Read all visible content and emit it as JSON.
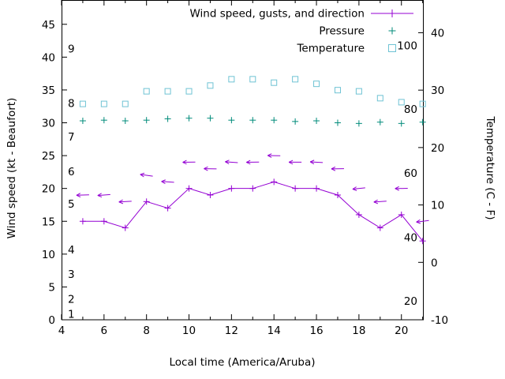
{
  "chart_data": {
    "type": "line",
    "title": "",
    "xlabel": "Local time (America/Aruba)",
    "ylabel_left": "Wind speed (kt - Beaufort)",
    "ylabel_right": "Temperature (C - F)",
    "x_range": [
      4,
      21.05
    ],
    "y_left_range": [
      0,
      48.7
    ],
    "y_right_range": [
      -10,
      45.7
    ],
    "x_ticks_major": [
      4,
      6,
      8,
      10,
      12,
      14,
      16,
      18,
      20
    ],
    "x_ticks_minor": [
      5,
      7,
      9,
      11,
      13,
      15,
      17,
      19,
      21
    ],
    "y_left_ticks": [
      0,
      5,
      10,
      15,
      20,
      25,
      30,
      35,
      40,
      45
    ],
    "y_right_ticks": [
      -10,
      0,
      10,
      20,
      30,
      40
    ],
    "beaufort_labels": [
      {
        "label": "1",
        "kt": 0.9
      },
      {
        "label": "2",
        "kt": 3.2
      },
      {
        "label": "3",
        "kt": 7.0
      },
      {
        "label": "4",
        "kt": 10.7
      },
      {
        "label": "5",
        "kt": 17.7
      },
      {
        "label": "6",
        "kt": 22.6
      },
      {
        "label": "7",
        "kt": 27.9
      },
      {
        "label": "8",
        "kt": 33.0
      },
      {
        "label": "9",
        "kt": 41.3
      }
    ],
    "fahrenheit_labels": [
      {
        "label": "20",
        "c": -6.7
      },
      {
        "label": "40",
        "c": 4.4
      },
      {
        "label": "60",
        "c": 15.6
      },
      {
        "label": "80",
        "c": 26.7
      },
      {
        "label": "100",
        "c": 37.8
      }
    ],
    "legend": [
      {
        "label": "Wind speed, gusts, and direction",
        "series": "wind"
      },
      {
        "label": "Pressure",
        "series": "pressure"
      },
      {
        "label": "Temperature",
        "series": "temperature"
      }
    ],
    "hours": [
      5,
      6,
      7,
      8,
      9,
      10,
      11,
      12,
      13,
      14,
      15,
      16,
      17,
      18,
      19,
      20,
      21
    ],
    "series": {
      "wind_speed_kt": [
        15,
        15,
        14,
        18,
        17,
        20,
        19,
        20,
        20,
        21,
        20,
        20,
        19,
        16,
        14,
        16,
        12
      ],
      "wind_gust_kt": [
        19,
        19,
        18,
        22,
        21,
        24,
        23,
        24,
        24,
        25,
        24,
        24,
        23,
        20,
        18,
        20,
        15
      ],
      "wind_dir_deg": [
        182,
        184,
        183,
        172,
        176,
        181,
        179,
        176,
        181,
        179,
        180,
        177,
        181,
        186,
        184,
        181,
        187
      ],
      "pressure_inhg": [
        30.3,
        30.4,
        30.3,
        30.4,
        30.6,
        30.7,
        30.7,
        30.4,
        30.4,
        30.4,
        30.2,
        30.3,
        30.0,
        29.9,
        30.1,
        29.9,
        30.1
      ],
      "temperature_c": [
        27.6,
        27.6,
        27.6,
        29.8,
        29.8,
        29.8,
        30.8,
        31.9,
        31.9,
        31.3,
        31.9,
        31.1,
        30.0,
        29.8,
        28.6,
        27.9,
        27.6
      ]
    },
    "colors": {
      "wind": "#9400d3",
      "pressure": "#008b7a",
      "temperature": "#6fc3d4",
      "axis": "#000000",
      "background": "#ffffff"
    }
  }
}
